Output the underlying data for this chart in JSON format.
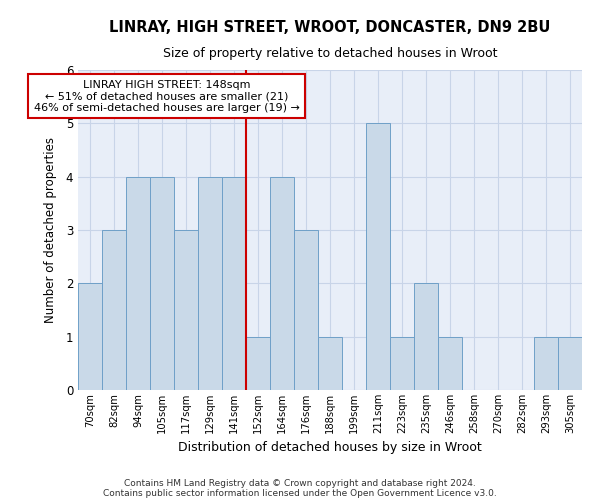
{
  "title": "LINRAY, HIGH STREET, WROOT, DONCASTER, DN9 2BU",
  "subtitle": "Size of property relative to detached houses in Wroot",
  "xlabel": "Distribution of detached houses by size in Wroot",
  "ylabel": "Number of detached properties",
  "footer_line1": "Contains HM Land Registry data © Crown copyright and database right 2024.",
  "footer_line2": "Contains public sector information licensed under the Open Government Licence v3.0.",
  "bin_labels": [
    "70sqm",
    "82sqm",
    "94sqm",
    "105sqm",
    "117sqm",
    "129sqm",
    "141sqm",
    "152sqm",
    "164sqm",
    "176sqm",
    "188sqm",
    "199sqm",
    "211sqm",
    "223sqm",
    "235sqm",
    "246sqm",
    "258sqm",
    "270sqm",
    "282sqm",
    "293sqm",
    "305sqm"
  ],
  "bar_heights": [
    2,
    3,
    4,
    4,
    3,
    4,
    4,
    1,
    4,
    3,
    1,
    0,
    5,
    1,
    2,
    1,
    0,
    0,
    0,
    1,
    1
  ],
  "bar_color": "#c9d9e8",
  "bar_edge_color": "#6fa0c8",
  "property_label": "LINRAY HIGH STREET: 148sqm",
  "annotation_line1": "← 51% of detached houses are smaller (21)",
  "annotation_line2": "46% of semi-detached houses are larger (19) →",
  "vline_color": "#cc0000",
  "vline_bin_index": 6.5,
  "annotation_box_edge_color": "#cc0000",
  "ylim": [
    0,
    6
  ],
  "yticks": [
    0,
    1,
    2,
    3,
    4,
    5,
    6
  ],
  "grid_color": "#c8d4e8",
  "background_color": "#e8eef8"
}
